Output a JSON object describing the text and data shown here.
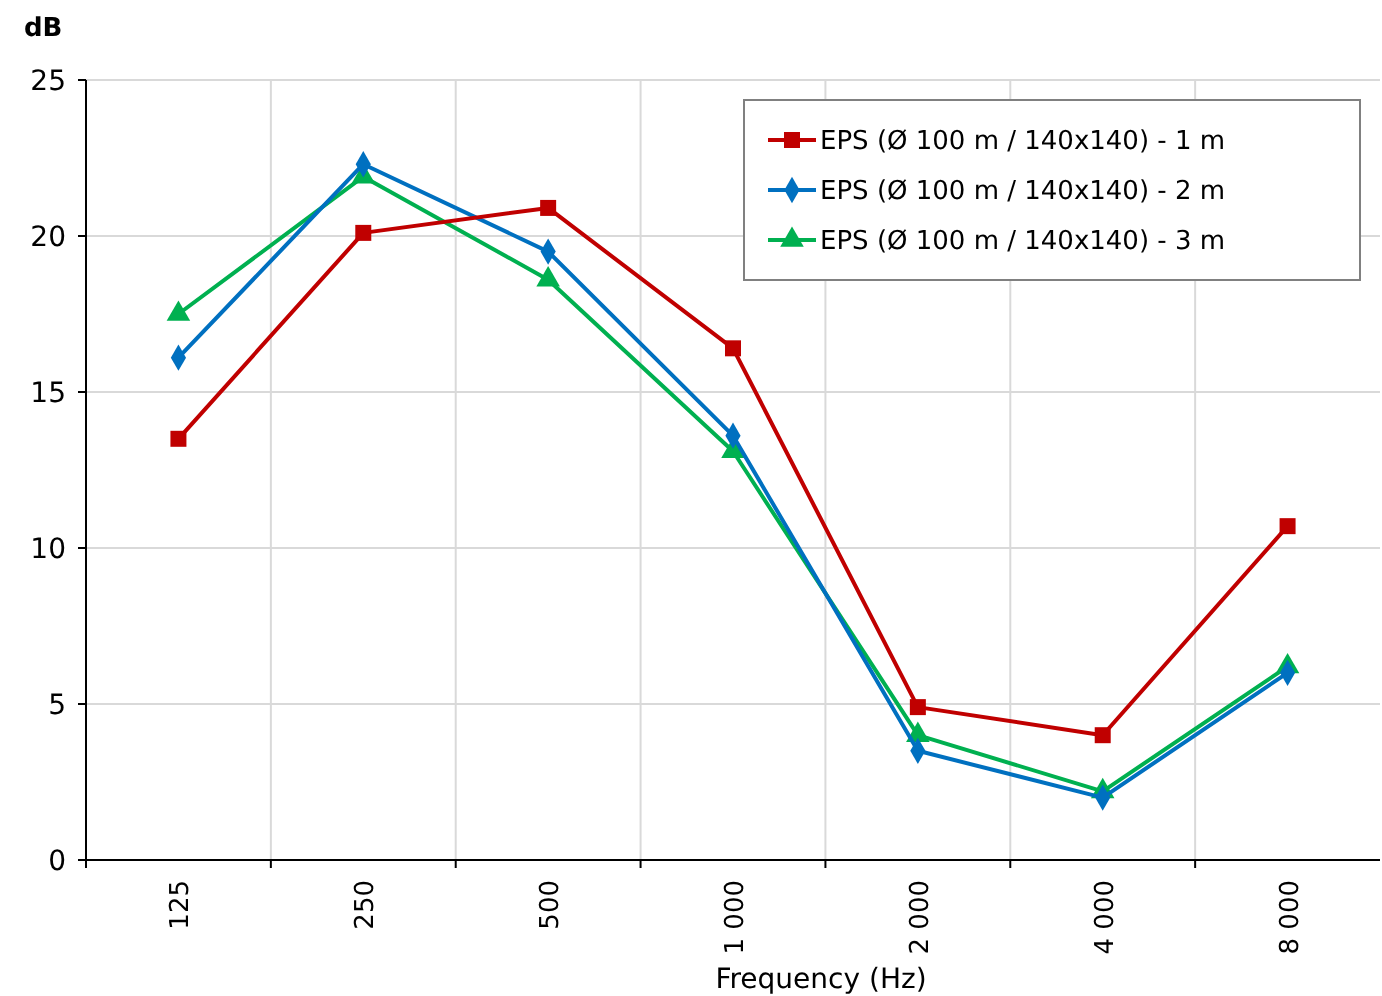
{
  "chart_data": {
    "type": "line",
    "ylabel": "dB",
    "xlabel": "Frequency (Hz)",
    "categories": [
      "125",
      "250",
      "500",
      "1 000",
      "2 000",
      "4 000",
      "8 000"
    ],
    "ylim": [
      0,
      25
    ],
    "yticks": [
      0,
      5,
      10,
      15,
      20,
      25
    ],
    "grid": true,
    "legend": "top right",
    "line_style": "solid",
    "series": [
      {
        "name": "EPS (Ø 100 m / 140x140) - 1 m",
        "color": "#c00000",
        "marker": "square",
        "values": [
          13.5,
          20.1,
          20.9,
          16.4,
          4.9,
          4.0,
          10.7
        ]
      },
      {
        "name": "EPS (Ø 100 m / 140x140) - 2 m",
        "color": "#0070c0",
        "marker": "diamond",
        "values": [
          16.1,
          22.3,
          19.5,
          13.6,
          3.5,
          2.0,
          6.0
        ]
      },
      {
        "name": "EPS (Ø 100 m / 140x140) - 3 m",
        "color": "#00b050",
        "marker": "triangle",
        "values": [
          17.5,
          21.9,
          18.6,
          13.1,
          4.0,
          2.2,
          6.2
        ]
      }
    ]
  }
}
